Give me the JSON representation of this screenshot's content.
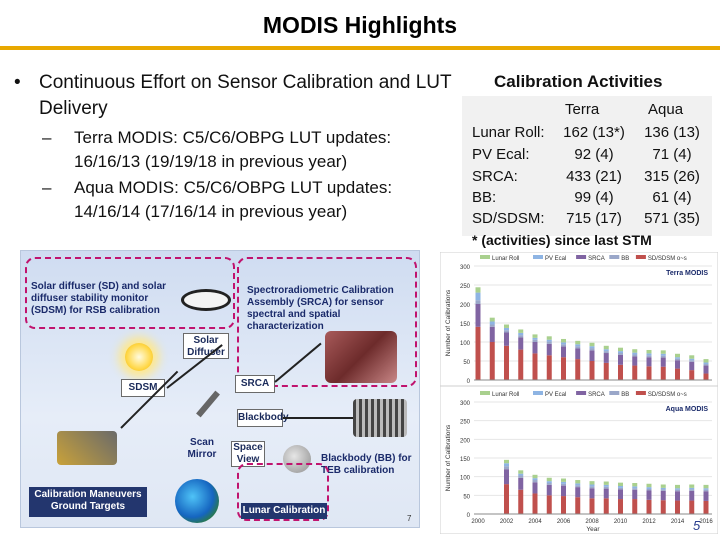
{
  "slide": {
    "title": "MODIS Highlights",
    "page_number": "5",
    "accent_color": "#e8a800"
  },
  "left_text": {
    "bullet_glyph": "•",
    "bullet": "Continuous Effort on Sensor Calibration and LUT Delivery",
    "dash_glyph": "–",
    "sub_bullets": [
      "Terra MODIS: C5/C6/OBPG LUT updates: 16/16/13 (19/19/18 in previous year)",
      "Aqua MODIS: C5/C6/OBPG LUT updates: 14/16/14 (17/16/14 in previous year)"
    ]
  },
  "calibration": {
    "heading": "Calibration Activities",
    "col_terra": "Terra",
    "col_aqua": "Aqua",
    "rows": [
      {
        "label": "Lunar Roll:",
        "terra": "162 (13*)",
        "aqua": "136 (13)"
      },
      {
        "label": "PV Ecal:",
        "terra": "92 (4)",
        "aqua": "71 (4)"
      },
      {
        "label": "SRCA:",
        "terra": "433 (21)",
        "aqua": "315 (26)"
      },
      {
        "label": "BB:",
        "terra": "99 (4)",
        "aqua": "61 (4)"
      },
      {
        "label": "SD/SDSM:",
        "terra": "715 (17)",
        "aqua": "571 (35)"
      }
    ],
    "footnote": "* (activities) since last STM"
  },
  "diagram": {
    "sd_caption": "Solar diffuser (SD) and solar diffuser stability monitor (SDSM) for RSB calibration",
    "srca_caption": "Spectroradiometric Calibration Assembly (SRCA) for sensor spectral and spatial characterization",
    "solar_diffuser": "Solar Diffuser",
    "sdsm": "SDSM",
    "srca": "SRCA",
    "blackbody": "Blackbody",
    "scan_mirror": "Scan Mirror",
    "space_view": "Space View",
    "bb_caption": "Blackbody (BB) for TEB calibration",
    "maneuvers": "Calibration Maneuvers Ground Targets",
    "lunar": "Lunar Calibration",
    "page": "7",
    "icons": [
      "sun-icon",
      "moon-icon",
      "earth-icon",
      "satellite-icon",
      "diffuser-icon",
      "srca-icon",
      "blackbody-icon",
      "scan-mirror-icon"
    ]
  },
  "chart_data": [
    {
      "type": "bar",
      "title": "Terra MODIS",
      "ylabel": "Number of Calibrations",
      "ylim": [
        0,
        300
      ],
      "yticks": [
        0,
        50,
        100,
        150,
        200,
        250,
        300
      ],
      "legend": [
        "Lunar Roll",
        "PV Ecal",
        "SRCA",
        "BB",
        "SD/SDSM o~s"
      ],
      "colors": [
        "#a9d08e",
        "#8eb4e3",
        "#8064a2",
        "#9aa7c9",
        "#c0504d"
      ],
      "legend_placement": "top",
      "x": [
        2000,
        2001,
        2002,
        2003,
        2004,
        2005,
        2006,
        2007,
        2008,
        2009,
        2010,
        2011,
        2012,
        2013,
        2014,
        2015,
        2016
      ],
      "series": [
        {
          "name": "Lunar Roll",
          "values": [
            14,
            10,
            9,
            9,
            9,
            9,
            9,
            9,
            9,
            9,
            9,
            9,
            9,
            9,
            9,
            9,
            9
          ]
        },
        {
          "name": "PV Ecal",
          "values": [
            20,
            8,
            6,
            6,
            5,
            5,
            5,
            5,
            5,
            5,
            5,
            5,
            5,
            5,
            4,
            4,
            4
          ]
        },
        {
          "name": "SRCA",
          "values": [
            60,
            40,
            35,
            32,
            30,
            30,
            28,
            28,
            28,
            26,
            26,
            24,
            24,
            24,
            22,
            22,
            21
          ]
        },
        {
          "name": "BB",
          "values": [
            10,
            6,
            6,
            6,
            6,
            6,
            6,
            6,
            6,
            5,
            5,
            5,
            5,
            5,
            4,
            4,
            4
          ]
        },
        {
          "name": "SD/SDSM o~s",
          "values": [
            140,
            100,
            90,
            80,
            70,
            65,
            60,
            55,
            50,
            45,
            40,
            38,
            36,
            35,
            30,
            26,
            17
          ]
        }
      ]
    },
    {
      "type": "bar",
      "title": "Aqua MODIS",
      "ylabel": "Number of Calibrations",
      "xlabel": "Year",
      "ylim": [
        0,
        300
      ],
      "yticks": [
        0,
        50,
        100,
        150,
        200,
        250,
        300
      ],
      "xticks": [
        2000,
        2002,
        2004,
        2006,
        2008,
        2010,
        2012,
        2014,
        2016
      ],
      "legend": [
        "Lunar Roll",
        "PV Ecal",
        "SRCA",
        "BB",
        "SD/SDSM o~s"
      ],
      "colors": [
        "#a9d08e",
        "#8eb4e3",
        "#8064a2",
        "#9aa7c9",
        "#c0504d"
      ],
      "legend_placement": "top",
      "x": [
        2002,
        2003,
        2004,
        2005,
        2006,
        2007,
        2008,
        2009,
        2010,
        2011,
        2012,
        2013,
        2014,
        2015,
        2016
      ],
      "series": [
        {
          "name": "Lunar Roll",
          "values": [
            9,
            9,
            9,
            9,
            9,
            9,
            9,
            9,
            9,
            9,
            9,
            9,
            9,
            9,
            9
          ]
        },
        {
          "name": "PV Ecal",
          "values": [
            8,
            5,
            5,
            5,
            5,
            5,
            5,
            5,
            5,
            5,
            5,
            4,
            4,
            4,
            4
          ]
        },
        {
          "name": "SRCA",
          "values": [
            40,
            32,
            30,
            28,
            28,
            27,
            27,
            26,
            26,
            25,
            25,
            25,
            25,
            26,
            26
          ]
        },
        {
          "name": "BB",
          "values": [
            8,
            6,
            6,
            5,
            5,
            5,
            5,
            5,
            4,
            4,
            4,
            4,
            4,
            4,
            4
          ]
        },
        {
          "name": "SD/SDSM o~s",
          "values": [
            80,
            65,
            55,
            50,
            48,
            45,
            42,
            42,
            40,
            40,
            38,
            37,
            36,
            36,
            35
          ]
        }
      ]
    }
  ]
}
